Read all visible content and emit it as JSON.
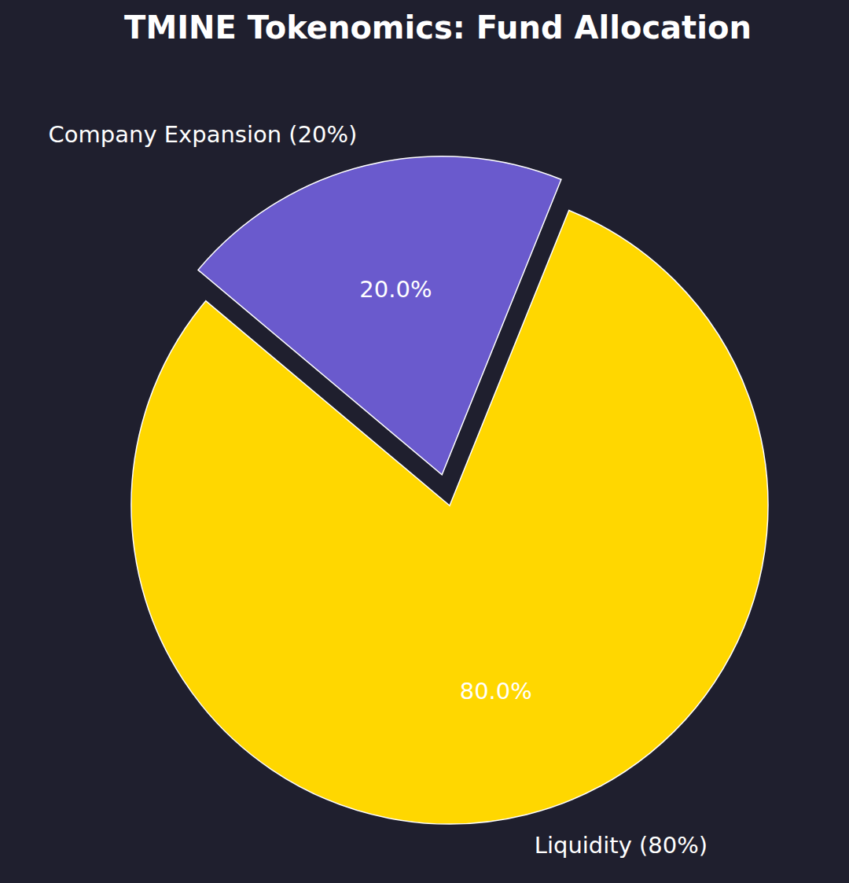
{
  "chart_data": {
    "type": "pie",
    "title": "TMINE Tokenomics: Fund Allocation",
    "categories": [
      "Liquidity (80%)",
      "Company Expansion (20%)"
    ],
    "values": [
      80,
      20
    ],
    "value_labels": [
      "80.0%",
      "20.0%"
    ],
    "colors": [
      "#ffd700",
      "#6a5acd"
    ],
    "data_labels": true
  }
}
